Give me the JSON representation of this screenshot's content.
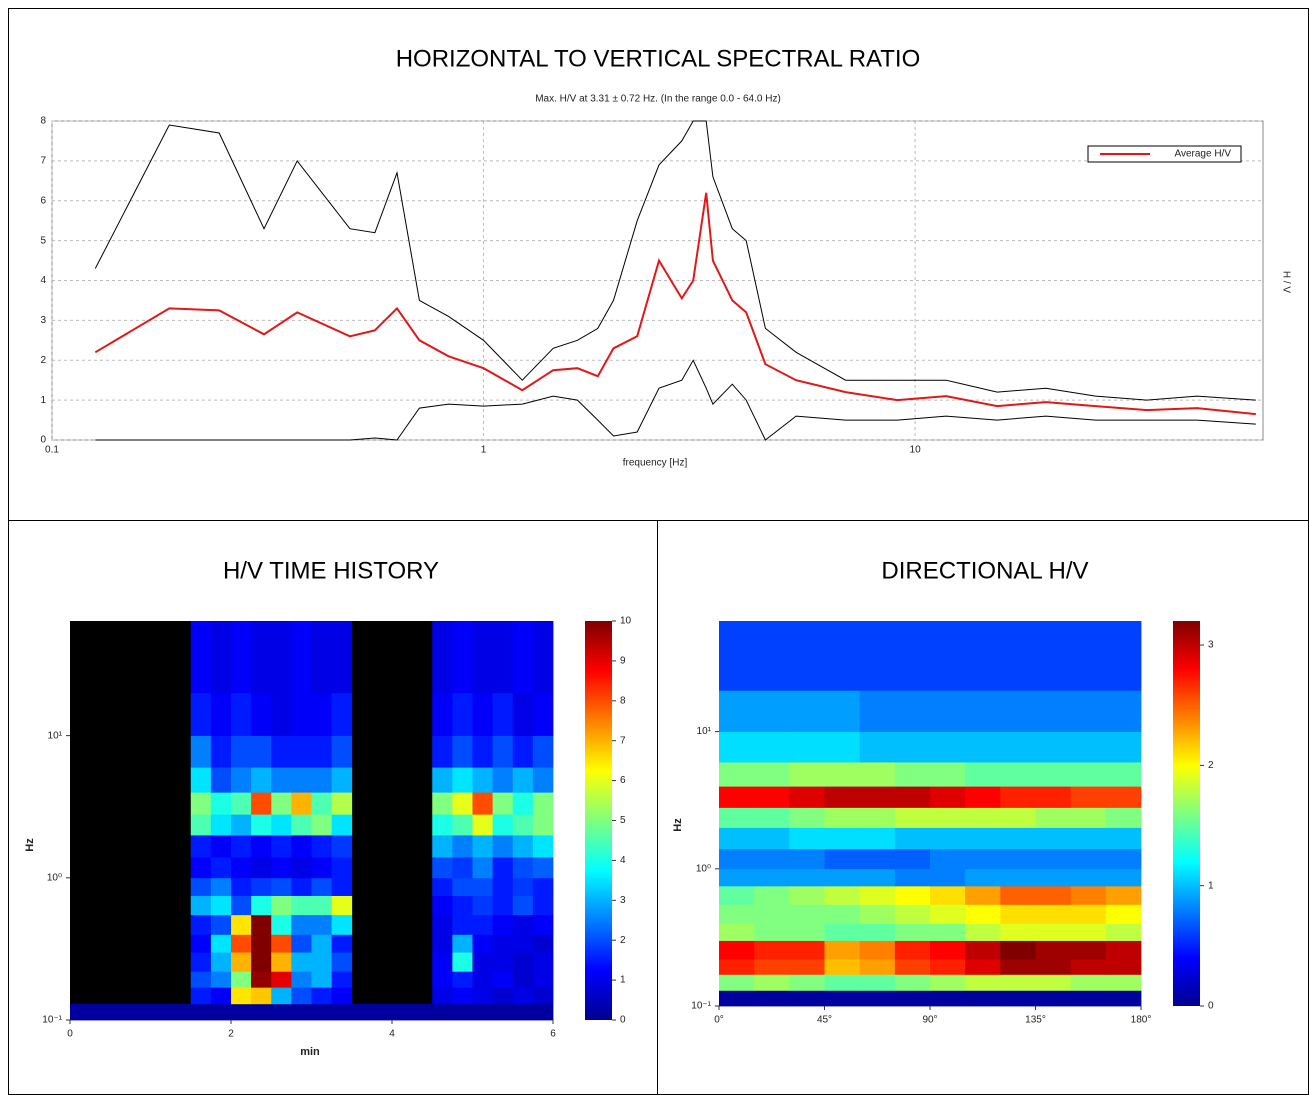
{
  "chart_data": [
    {
      "type": "line",
      "title": "HORIZONTAL TO VERTICAL SPECTRAL RATIO",
      "subtitle": "Max. H/V at 3.31 ± 0.72 Hz. (In the range 0.0 - 64.0 Hz)",
      "x_label": "frequency [Hz]",
      "y_label": "H / V",
      "x": [
        0.126,
        0.187,
        0.244,
        0.31,
        0.37,
        0.49,
        0.56,
        0.63,
        0.71,
        0.83,
        1.0,
        1.23,
        1.45,
        1.65,
        1.84,
        2.0,
        2.27,
        2.55,
        2.88,
        3.06,
        3.28,
        3.4,
        3.77,
        4.06,
        4.5,
        5.3,
        6.9,
        9.1,
        11.8,
        15.5,
        20.1,
        26.2,
        34.4,
        45,
        61.6
      ],
      "series": [
        {
          "name": "Average H/V",
          "color": "#e01818",
          "values": [
            2.2,
            3.3,
            3.25,
            2.65,
            3.2,
            2.6,
            2.75,
            3.3,
            2.5,
            2.1,
            1.8,
            1.25,
            1.75,
            1.8,
            1.6,
            2.3,
            2.6,
            4.5,
            3.55,
            4.0,
            6.2,
            4.5,
            3.5,
            3.2,
            1.9,
            1.5,
            1.2,
            1.0,
            1.1,
            0.85,
            0.95,
            0.85,
            0.75,
            0.8,
            0.65
          ]
        },
        {
          "color": "#000000",
          "values": [
            4.3,
            7.9,
            7.7,
            5.3,
            7.0,
            5.3,
            5.2,
            6.7,
            3.5,
            3.1,
            2.5,
            1.5,
            2.3,
            2.5,
            2.8,
            3.5,
            5.5,
            6.9,
            7.5,
            8.0,
            8.0,
            6.6,
            5.3,
            5.0,
            2.8,
            2.2,
            1.5,
            1.5,
            1.5,
            1.2,
            1.3,
            1.1,
            1.0,
            1.1,
            1.0
          ]
        },
        {
          "color": "#000000",
          "values": [
            0,
            0,
            0,
            0,
            0,
            0,
            0.05,
            0,
            0.8,
            0.9,
            0.85,
            0.9,
            1.1,
            1.0,
            0.5,
            0.1,
            0.2,
            1.3,
            1.5,
            2.0,
            1.3,
            0.9,
            1.4,
            1.0,
            0,
            0.6,
            0.5,
            0.5,
            0.6,
            0.5,
            0.6,
            0.5,
            0.5,
            0.5,
            0.4
          ]
        }
      ],
      "xlim": [
        0.1,
        64
      ],
      "xticks": [
        0.1,
        1,
        10
      ],
      "xlog": true,
      "ylim": [
        0,
        8
      ],
      "yticks": [
        0,
        1,
        2,
        3,
        4,
        5,
        6,
        7,
        8
      ],
      "grid": true,
      "legend": "top-right"
    },
    {
      "type": "heatmap",
      "title": "H/V TIME HISTORY",
      "x_label": "min",
      "y_label": "Hz",
      "x_bins": [
        0,
        0.25,
        0.5,
        0.75,
        1,
        1.25,
        1.5,
        1.75,
        2,
        2.25,
        2.5,
        2.75,
        3,
        3.25,
        3.5,
        3.75,
        4,
        4.25,
        4.5,
        4.75,
        5,
        5.25,
        5.5,
        5.75,
        6
      ],
      "y_bins": [
        0.1,
        0.13,
        0.17,
        0.22,
        0.3,
        0.4,
        0.55,
        0.75,
        1,
        1.4,
        2,
        2.8,
        4,
        6,
        10,
        20,
        64
      ],
      "z": [
        [
          0.3,
          0.3,
          0.3,
          0.3,
          0.3,
          0.3,
          0.3,
          0.3,
          0.3,
          0.3,
          0.3,
          0.3,
          0.3,
          0.3,
          0.3,
          0.3,
          0.3,
          0.3,
          0.3,
          0.3,
          0.3,
          0.3,
          0.3,
          0.3
        ],
        [
          null,
          null,
          null,
          null,
          null,
          null,
          1.5,
          1.2,
          6.5,
          6.8,
          3,
          2,
          1.5,
          1.2,
          null,
          null,
          null,
          null,
          1,
          1.2,
          1,
          0.8,
          1,
          0.8
        ],
        [
          null,
          null,
          null,
          null,
          null,
          null,
          2,
          2.5,
          5,
          9.8,
          9,
          2.5,
          3,
          1.5,
          null,
          null,
          null,
          null,
          1.2,
          1.5,
          1,
          1.2,
          0.8,
          1
        ],
        [
          null,
          null,
          null,
          null,
          null,
          null,
          1.5,
          3,
          7,
          10,
          7,
          3,
          3,
          2,
          null,
          null,
          null,
          null,
          1.2,
          4,
          1,
          1,
          0.8,
          1
        ],
        [
          null,
          null,
          null,
          null,
          null,
          null,
          1.2,
          3.5,
          8,
          10,
          8,
          2,
          3,
          1.5,
          null,
          null,
          null,
          null,
          1,
          3,
          1.2,
          1,
          1,
          0.8
        ],
        [
          null,
          null,
          null,
          null,
          null,
          null,
          1.5,
          2,
          6.5,
          10,
          4,
          2.5,
          2.5,
          3.5,
          null,
          null,
          null,
          null,
          1,
          1.5,
          1.5,
          1.2,
          1,
          1.2
        ],
        [
          null,
          null,
          null,
          null,
          null,
          null,
          3,
          3.5,
          2,
          4,
          5,
          4.5,
          4.5,
          6,
          null,
          null,
          null,
          null,
          1.2,
          1.5,
          1.8,
          1.5,
          2,
          1.5
        ],
        [
          null,
          null,
          null,
          null,
          null,
          null,
          2,
          2.5,
          1.5,
          1.8,
          2,
          1.5,
          2,
          1.5,
          null,
          null,
          null,
          null,
          1.5,
          2,
          2,
          1.5,
          1.8,
          1.5
        ],
        [
          null,
          null,
          null,
          null,
          null,
          null,
          1.2,
          1.5,
          1.2,
          1,
          1.2,
          1,
          1.2,
          1.5,
          null,
          null,
          null,
          null,
          2,
          1.8,
          2.5,
          1.5,
          2,
          2.2
        ],
        [
          null,
          null,
          null,
          null,
          null,
          null,
          1.5,
          1.2,
          1.5,
          1.2,
          1.5,
          1.2,
          1.5,
          1.8,
          null,
          null,
          null,
          null,
          3,
          2.5,
          3,
          2.5,
          3,
          3.5
        ],
        [
          null,
          null,
          null,
          null,
          null,
          null,
          4.5,
          3.5,
          3,
          4,
          3.5,
          4.5,
          5,
          3.5,
          null,
          null,
          null,
          null,
          4,
          4.5,
          6,
          4,
          4.5,
          5
        ],
        [
          null,
          null,
          null,
          null,
          null,
          null,
          5,
          4,
          4.5,
          8,
          5,
          7,
          4.5,
          5.5,
          null,
          null,
          null,
          null,
          5,
          6,
          8,
          5,
          4,
          5
        ],
        [
          null,
          null,
          null,
          null,
          null,
          null,
          3.5,
          2,
          2.5,
          3,
          2.5,
          2.5,
          2.5,
          3,
          null,
          null,
          null,
          null,
          3,
          3.5,
          3,
          2.5,
          3,
          2.5
        ],
        [
          null,
          null,
          null,
          null,
          null,
          null,
          2.5,
          1.5,
          2,
          2,
          1.5,
          1.5,
          1.5,
          2,
          null,
          null,
          null,
          null,
          1.5,
          2,
          1.5,
          2,
          1.5,
          2
        ],
        [
          null,
          null,
          null,
          null,
          null,
          null,
          1.5,
          1.2,
          1.5,
          1.2,
          1,
          1.2,
          1.2,
          1.5,
          null,
          null,
          null,
          null,
          1.2,
          1.5,
          1.2,
          1.5,
          1,
          1.2
        ],
        [
          null,
          null,
          null,
          null,
          null,
          null,
          1.2,
          1,
          1.2,
          1,
          1,
          1.2,
          1,
          1,
          null,
          null,
          null,
          null,
          1,
          1.2,
          1,
          1,
          1.2,
          1
        ]
      ],
      "xlim": [
        0,
        6
      ],
      "xticks": [
        0,
        2,
        4,
        6
      ],
      "ylim": [
        0.1,
        64
      ],
      "ylog": true,
      "yticks": [
        {
          "value": 0.1,
          "label": "10⁻¹"
        },
        {
          "value": 1,
          "label": "10⁰"
        },
        {
          "value": 10,
          "label": "10¹"
        }
      ],
      "zlim": [
        0,
        10
      ],
      "zticks": [
        0,
        1,
        2,
        3,
        4,
        5,
        6,
        7,
        8,
        9,
        10
      ],
      "colormap": "jet"
    },
    {
      "type": "heatmap",
      "title": "DIRECTIONAL H/V",
      "y_label": "Hz",
      "x_bins": [
        0,
        15,
        30,
        45,
        60,
        75,
        90,
        105,
        120,
        135,
        150,
        165,
        180
      ],
      "y_bins": [
        0.1,
        0.13,
        0.17,
        0.22,
        0.3,
        0.4,
        0.55,
        0.75,
        1,
        1.4,
        2,
        2.8,
        4,
        6,
        10,
        20,
        64
      ],
      "z": [
        [
          0.1,
          0.1,
          0.1,
          0.1,
          0.1,
          0.1,
          0.1,
          0.1,
          0.1,
          0.1,
          0.1,
          0.1
        ],
        [
          1.6,
          1.7,
          1.6,
          1.5,
          1.5,
          1.6,
          1.7,
          1.8,
          1.8,
          1.8,
          1.7,
          1.7
        ],
        [
          2.7,
          2.6,
          2.6,
          2.2,
          2.3,
          2.6,
          2.7,
          2.9,
          3.1,
          3.1,
          3.0,
          3.0
        ],
        [
          2.8,
          2.7,
          2.7,
          2.3,
          2.4,
          2.7,
          2.8,
          3.0,
          3.2,
          3.1,
          3.1,
          3.0
        ],
        [
          1.7,
          1.6,
          1.6,
          1.5,
          1.5,
          1.6,
          1.6,
          1.8,
          1.9,
          1.9,
          1.9,
          1.8
        ],
        [
          1.6,
          1.6,
          1.6,
          1.6,
          1.7,
          1.8,
          1.9,
          2.0,
          2.1,
          2.1,
          2.1,
          2.0
        ],
        [
          1.5,
          1.6,
          1.7,
          1.8,
          1.9,
          2.0,
          2.1,
          2.3,
          2.5,
          2.5,
          2.4,
          2.3
        ],
        [
          0.9,
          0.9,
          0.9,
          0.9,
          0.9,
          0.8,
          0.8,
          0.9,
          0.9,
          0.9,
          0.9,
          0.9
        ],
        [
          0.8,
          0.8,
          0.8,
          0.7,
          0.7,
          0.7,
          0.8,
          0.8,
          0.8,
          0.8,
          0.8,
          0.8
        ],
        [
          1.0,
          1.0,
          1.1,
          1.1,
          1.1,
          1.0,
          1.0,
          1.0,
          1.0,
          1.0,
          1.0,
          1.0
        ],
        [
          1.5,
          1.5,
          1.6,
          1.7,
          1.7,
          1.8,
          1.8,
          1.8,
          1.8,
          1.7,
          1.7,
          1.6
        ],
        [
          2.8,
          2.8,
          2.9,
          3.0,
          3.0,
          3.0,
          2.9,
          2.8,
          2.7,
          2.7,
          2.6,
          2.6
        ],
        [
          1.6,
          1.6,
          1.7,
          1.7,
          1.7,
          1.6,
          1.6,
          1.5,
          1.5,
          1.5,
          1.5,
          1.5
        ],
        [
          1.1,
          1.1,
          1.1,
          1.1,
          1.0,
          1.0,
          1.0,
          1.0,
          1.0,
          1.0,
          1.0,
          1.0
        ],
        [
          0.9,
          0.9,
          0.9,
          0.9,
          0.8,
          0.8,
          0.8,
          0.8,
          0.8,
          0.8,
          0.8,
          0.8
        ],
        [
          0.6,
          0.6,
          0.6,
          0.6,
          0.6,
          0.6,
          0.6,
          0.6,
          0.6,
          0.6,
          0.6,
          0.6
        ]
      ],
      "xlim": [
        0,
        180
      ],
      "xticks": [
        {
          "value": 0,
          "label": "0°"
        },
        {
          "value": 45,
          "label": "45°"
        },
        {
          "value": 90,
          "label": "90°"
        },
        {
          "value": 135,
          "label": "135°"
        },
        {
          "value": 180,
          "label": "180°"
        }
      ],
      "ylim": [
        0.1,
        64
      ],
      "ylog": true,
      "yticks": [
        {
          "value": 0.1,
          "label": "10⁻¹"
        },
        {
          "value": 1,
          "label": "10⁰"
        },
        {
          "value": 10,
          "label": "10¹"
        }
      ],
      "zlim": [
        0,
        3.2
      ],
      "zticks": [
        0,
        1,
        2,
        3
      ],
      "colormap": "jet"
    }
  ]
}
